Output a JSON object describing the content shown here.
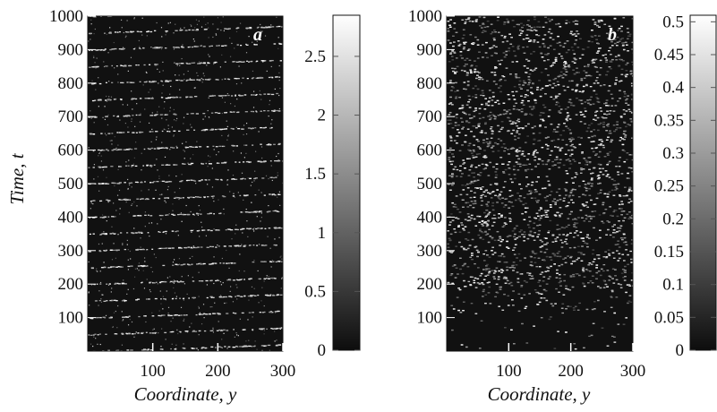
{
  "chart_data": [
    {
      "panel": "a",
      "type": "heatmap",
      "panel_label": "a",
      "xlabel": "Coordinate, y",
      "ylabel": "Time, t",
      "xlim": [
        0,
        300
      ],
      "ylim": [
        0,
        1000
      ],
      "x_ticks": [
        "100",
        "200",
        "300"
      ],
      "y_ticks": [
        "100",
        "200",
        "300",
        "400",
        "500",
        "600",
        "700",
        "800",
        "900",
        "1000"
      ],
      "colorbar": {
        "range": [
          0,
          2.85
        ],
        "ticks": [
          "0",
          "0.5",
          "1",
          "1.5",
          "2",
          "2.5"
        ],
        "colormap": "gray"
      },
      "pattern": {
        "background_level": "dark",
        "stripes": "thin bright diagonal streaks rising with y, repeating about every 50 time units",
        "stripe_period_t": 50,
        "stripe_rise_over_width": 20
      }
    },
    {
      "panel": "b",
      "type": "heatmap",
      "panel_label": "b",
      "xlabel": "Coordinate, y",
      "ylabel": "",
      "xlim": [
        0,
        300
      ],
      "ylim": [
        0,
        1000
      ],
      "x_ticks": [
        "100",
        "200",
        "300"
      ],
      "y_ticks": [
        "100",
        "200",
        "300",
        "400",
        "500",
        "600",
        "700",
        "800",
        "900",
        "1000"
      ],
      "colorbar": {
        "range": [
          0,
          0.51
        ],
        "ticks": [
          "0",
          "0.05",
          "0.1",
          "0.15",
          "0.2",
          "0.25",
          "0.3",
          "0.35",
          "0.4",
          "0.45",
          "0.5"
        ],
        "colormap": "gray"
      },
      "pattern": {
        "background_level": "dark for t below 200, dense bright speckle above",
        "transition_t": 200,
        "stripes": "noisy oblique streaks rising with y"
      }
    }
  ],
  "colors": {
    "background": "#ffffff",
    "map_dark": "#111111",
    "map_bright": "#f0f0f0",
    "text": "#111111"
  }
}
